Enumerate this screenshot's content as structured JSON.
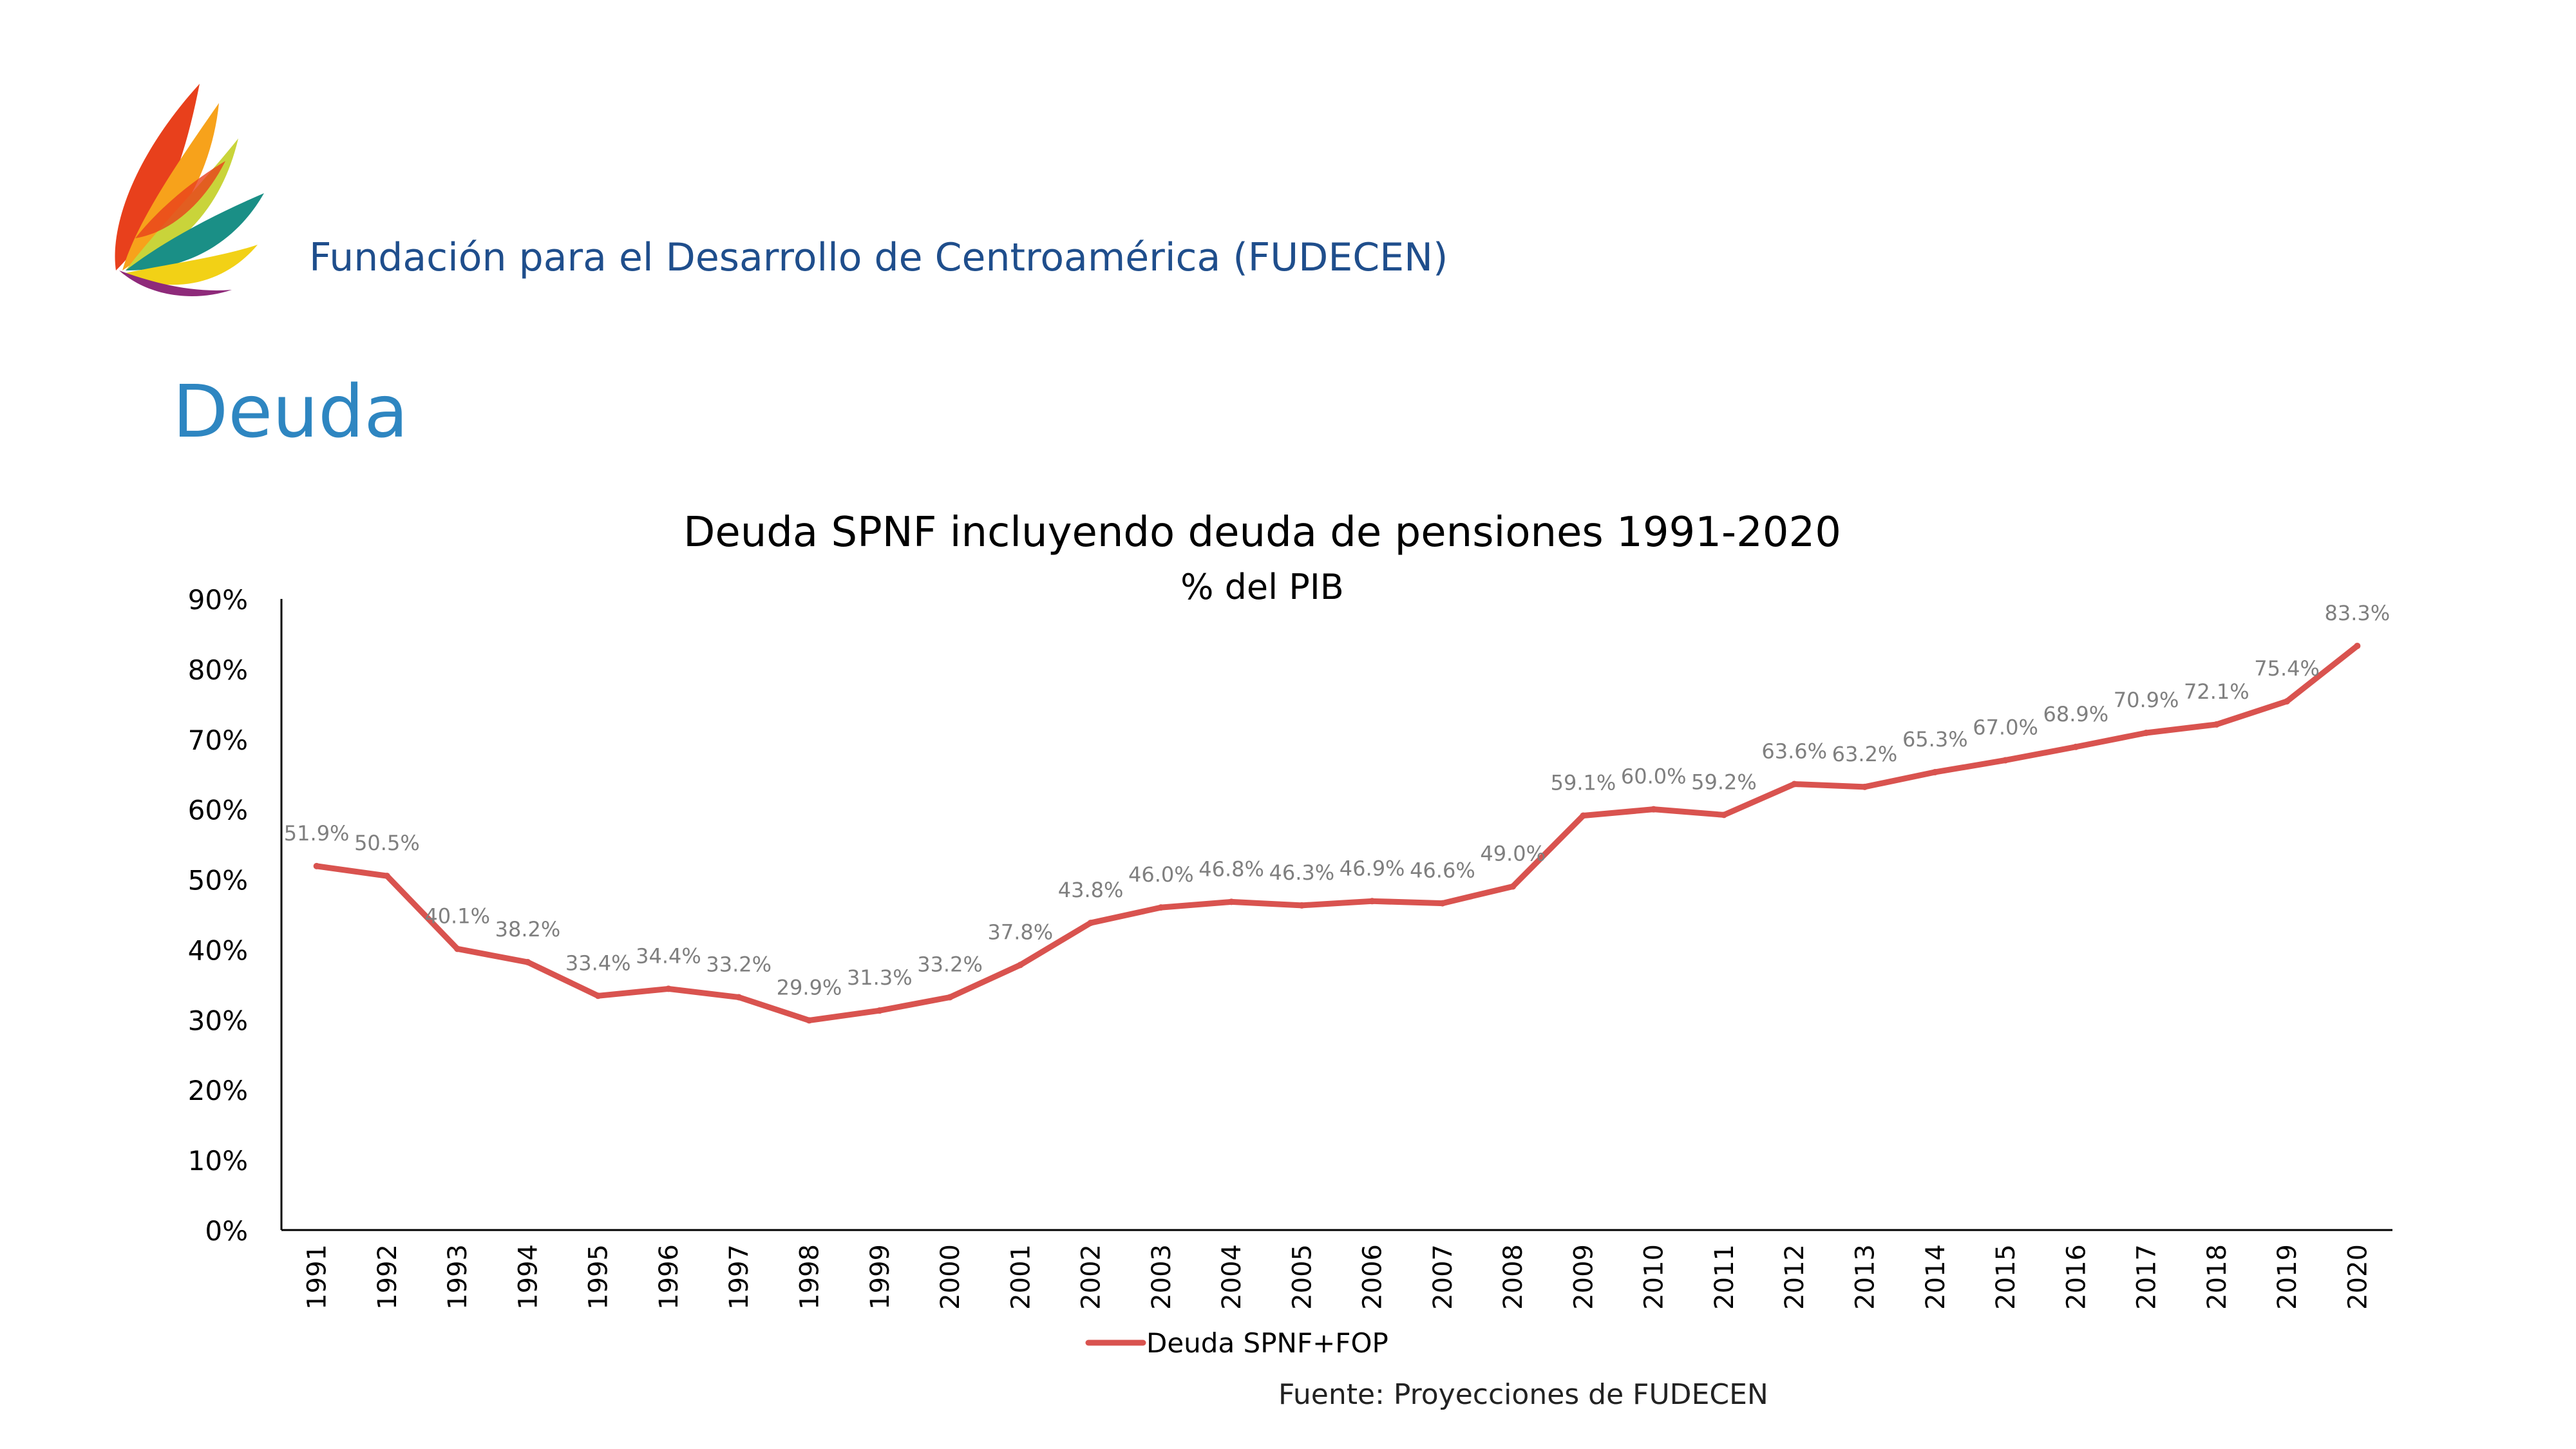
{
  "header": {
    "org_name": "Fundación para el Desarrollo de Centroamérica (FUDECEN)"
  },
  "slide": {
    "title": "Deuda"
  },
  "footer": {
    "source": "Fuente: Proyecciones de FUDECEN"
  },
  "colors": {
    "series": "#d9534f",
    "org_text": "#1f4e8c",
    "slide_title": "#2e86c1",
    "data_label": "#7f7f7f"
  },
  "chart_data": {
    "type": "line",
    "title": "Deuda SPNF incluyendo deuda de pensiones 1991-2020",
    "subtitle": "% del PIB",
    "xlabel": "",
    "ylabel": "",
    "ylim": [
      0,
      90
    ],
    "y_ticks": [
      "0%",
      "10%",
      "20%",
      "30%",
      "40%",
      "50%",
      "60%",
      "70%",
      "80%",
      "90%"
    ],
    "categories": [
      "1991",
      "1992",
      "1993",
      "1994",
      "1995",
      "1996",
      "1997",
      "1998",
      "1999",
      "2000",
      "2001",
      "2002",
      "2003",
      "2004",
      "2005",
      "2006",
      "2007",
      "2008",
      "2009",
      "2010",
      "2011",
      "2012",
      "2013",
      "2014",
      "2015",
      "2016",
      "2017",
      "2018",
      "2019",
      "2020"
    ],
    "series": [
      {
        "name": "Deuda SPNF+FOP",
        "values": [
          51.9,
          50.5,
          40.1,
          38.2,
          33.4,
          34.4,
          33.2,
          29.9,
          31.3,
          33.2,
          37.8,
          43.8,
          46.0,
          46.8,
          46.3,
          46.9,
          46.6,
          49.0,
          59.1,
          60.0,
          59.2,
          63.6,
          63.2,
          65.3,
          67.0,
          68.9,
          70.9,
          72.1,
          75.4,
          83.3
        ],
        "labels": [
          "51.9%",
          "50.5%",
          "40.1%",
          "38.2%",
          "33.4%",
          "34.4%",
          "33.2%",
          "29.9%",
          "31.3%",
          "33.2%",
          "37.8%",
          "43.8%",
          "46.0%",
          "46.8%",
          "46.3%",
          "46.9%",
          "46.6%",
          "49.0%",
          "59.1%",
          "60.0%",
          "59.2%",
          "63.6%",
          "63.2%",
          "65.3%",
          "67.0%",
          "68.9%",
          "70.9%",
          "72.1%",
          "75.4%",
          "83.3%"
        ]
      }
    ],
    "grid": false,
    "legend_position": "bottom"
  }
}
